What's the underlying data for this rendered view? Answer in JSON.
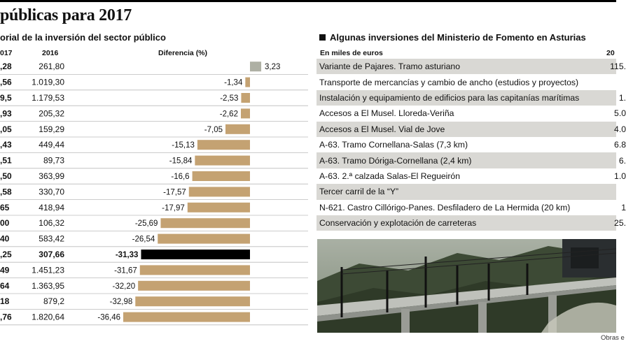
{
  "title": "públicas para 2017",
  "left_subtitle": "orial de la inversión del sector público",
  "right_subtitle": "Algunas inversiones del Ministerio de Fomento en Asturias",
  "photo_credit": "Obras e",
  "colors": {
    "bar": "#c4a272",
    "bar_positive": "#aeb0a4",
    "bar_highlight": "#000000",
    "row_shade": "#d9d8d4"
  },
  "chart_data": {
    "type": "bar",
    "title": "orial de la inversión del sector público",
    "col_2017_label": "017",
    "col_2016_label": "2016",
    "xlabel": "",
    "ylabel": "Diferencia (%)",
    "xlim": [
      -36.46,
      3.23
    ],
    "highlight_index": 12,
    "rows": [
      {
        "v2017": ",28",
        "v2016": "261,80",
        "diff": 3.23,
        "label": "3,23"
      },
      {
        "v2017": ",56",
        "v2016": "1.019,30",
        "diff": -1.34,
        "label": "-1,34"
      },
      {
        "v2017": "9,5",
        "v2016": "1.179,53",
        "diff": -2.53,
        "label": "-2,53"
      },
      {
        "v2017": ",93",
        "v2016": "205,32",
        "diff": -2.62,
        "label": "-2,62"
      },
      {
        "v2017": ",05",
        "v2016": "159,29",
        "diff": -7.05,
        "label": "-7,05"
      },
      {
        "v2017": ",43",
        "v2016": "449,44",
        "diff": -15.13,
        "label": "-15,13"
      },
      {
        "v2017": ",51",
        "v2016": "89,73",
        "diff": -15.84,
        "label": "-15,84"
      },
      {
        "v2017": ",50",
        "v2016": "363,99",
        "diff": -16.6,
        "label": "-16,6"
      },
      {
        "v2017": ",58",
        "v2016": "330,70",
        "diff": -17.57,
        "label": "-17,57"
      },
      {
        "v2017": "65",
        "v2016": "418,94",
        "diff": -17.97,
        "label": "-17,97"
      },
      {
        "v2017": "00",
        "v2016": "106,32",
        "diff": -25.69,
        "label": "-25,69"
      },
      {
        "v2017": "40",
        "v2016": "583,42",
        "diff": -26.54,
        "label": "-26,54"
      },
      {
        "v2017": ",25",
        "v2016": "307,66",
        "diff": -31.33,
        "label": "-31,33"
      },
      {
        "v2017": "49",
        "v2016": "1.451,23",
        "diff": -31.67,
        "label": "-31,67"
      },
      {
        "v2017": "64",
        "v2016": "1.363,95",
        "diff": -32.2,
        "label": "-32,20"
      },
      {
        "v2017": "18",
        "v2016": "879,2",
        "diff": -32.98,
        "label": "-32,98"
      },
      {
        "v2017": ",76",
        "v2016": "1.820,64",
        "diff": -36.46,
        "label": "-36,46"
      }
    ]
  },
  "fomento": {
    "units_label": "En miles de euros",
    "year_label": "20",
    "rows": [
      {
        "name": "Variante de Pajares. Tramo asturiano",
        "value": "115."
      },
      {
        "name": "Transporte de mercancías y cambio de ancho (estudios y proyectos)",
        "value": ""
      },
      {
        "name": "Instalación y equipamiento de edificios para las capitanías marítimas",
        "value": "1."
      },
      {
        "name": "Accesos a El Musel. Lloreda-Veriña",
        "value": "5.0"
      },
      {
        "name": "Accesos a El Musel. Vial de Jove",
        "value": "4.0"
      },
      {
        "name": "A-63. Tramo Cornellana-Salas (7,3 km)",
        "value": "6.8"
      },
      {
        "name": "A-63. Tramo Dóriga-Cornellana (2,4 km)",
        "value": "6."
      },
      {
        "name": "A-63. 2.ª calzada Salas-El Regueirón",
        "value": "1.0"
      },
      {
        "name": "Tercer carril de la “Y”",
        "value": ""
      },
      {
        "name": "N-621. Castro Cillórigo-Panes. Desfiladero de La Hermida (20 km)",
        "value": "1"
      },
      {
        "name": "Conservación y explotación de carreteras",
        "value": "25."
      }
    ]
  }
}
